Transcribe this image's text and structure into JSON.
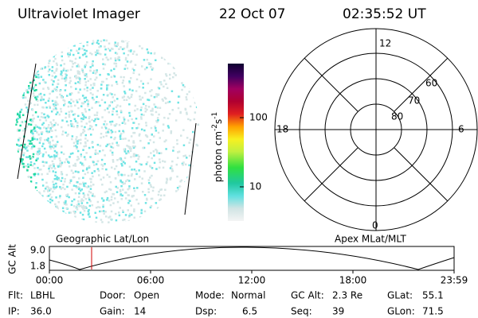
{
  "header": {
    "title": "Ultraviolet Imager",
    "date": "22 Oct 07",
    "time": "02:35:52 UT"
  },
  "colorbar": {
    "label": "photon cm",
    "exp1": "-2",
    "unit2": "s",
    "exp2": "-1",
    "ticks": [
      "100",
      "10"
    ]
  },
  "polar": {
    "hours": [
      "12",
      "18",
      "6",
      "0"
    ],
    "rings": [
      "80",
      "70",
      "60"
    ]
  },
  "timeline": {
    "left_label": "Geographic Lat/Lon",
    "right_label": "Apex MLat/MLT",
    "axis_label": "GC Alt",
    "y_labels": [
      "9.0",
      "1.8"
    ],
    "times": [
      "00:00",
      "06:00",
      "12:00",
      "18:00",
      "23:59"
    ]
  },
  "info": {
    "rows": [
      [
        [
          "Flt:",
          "LBHL"
        ],
        [
          "Door:",
          "Open"
        ],
        [
          "Mode:",
          "Normal"
        ],
        [
          "GC Alt:",
          "2.3 Re"
        ],
        [
          "GLat:",
          "55.1"
        ]
      ],
      [
        [
          "IP:",
          "36.0"
        ],
        [
          "Gain:",
          "14"
        ],
        [
          "Dsp:",
          "6.5"
        ],
        [
          "Seq:",
          "39"
        ],
        [
          "GLon:",
          "71.5"
        ]
      ]
    ]
  }
}
